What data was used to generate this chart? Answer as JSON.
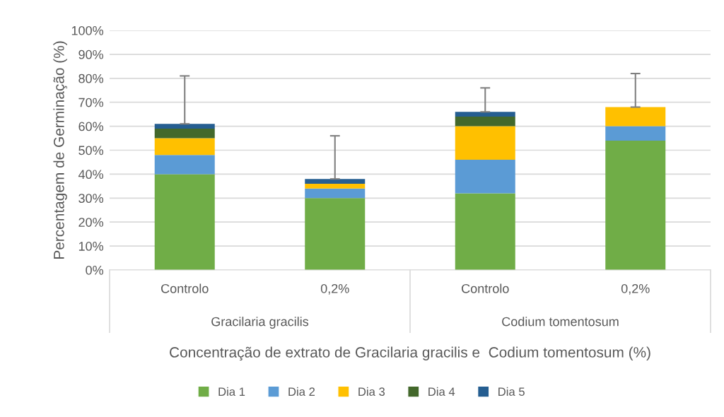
{
  "chart_data": {
    "type": "bar",
    "stacked": true,
    "xlabel": "Concentração de extrato de Gracilaria gracilis e  Codium tomentosum (%)",
    "ylabel": "Percentagem de Germinação (%)",
    "categories": [
      "Controlo",
      "0,2%",
      "Controlo",
      "0,2%"
    ],
    "series": [
      {
        "name": "Dia 1",
        "color": "#70ad47",
        "values": [
          40,
          30,
          32,
          54
        ]
      },
      {
        "name": "Dia 2",
        "color": "#5b9bd5",
        "values": [
          8,
          4,
          14,
          6
        ]
      },
      {
        "name": "Dia 3",
        "color": "#ffc000",
        "values": [
          7,
          2,
          14,
          8
        ]
      },
      {
        "name": "Dia 4",
        "color": "#43682b",
        "values": [
          4,
          0,
          4,
          0
        ]
      },
      {
        "name": "Dia 5",
        "color": "#255e91",
        "values": [
          2,
          2,
          2,
          0
        ],
        "errors": [
          [
            61,
            81
          ],
          [
            38,
            56
          ],
          [
            66,
            76
          ],
          [
            68,
            82
          ]
        ]
      }
    ],
    "ylim": [
      0,
      100
    ],
    "yticks": [
      {
        "value": 0,
        "label": "0%"
      },
      {
        "value": 10,
        "label": "10%"
      },
      {
        "value": 20,
        "label": "20%"
      },
      {
        "value": 30,
        "label": "30%"
      },
      {
        "value": 40,
        "label": "40%"
      },
      {
        "value": 50,
        "label": "50%"
      },
      {
        "value": 60,
        "label": "60%"
      },
      {
        "value": 70,
        "label": "70%"
      },
      {
        "value": 80,
        "label": "80%"
      },
      {
        "value": 90,
        "label": "90%"
      },
      {
        "value": 100,
        "label": "100%"
      }
    ],
    "annotations": [
      "Gracilaria gracilis",
      "Codium tomentosum"
    ],
    "grid": "y",
    "legend": "bottom"
  }
}
